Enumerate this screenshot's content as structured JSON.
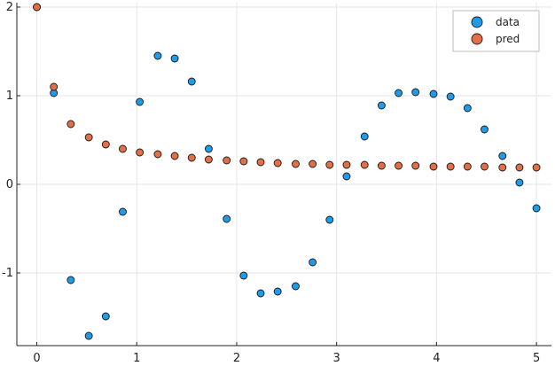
{
  "chart_data": {
    "type": "scatter",
    "xlim": [
      -0.2,
      5.15
    ],
    "ylim": [
      -1.82,
      2.05
    ],
    "xticks": [
      0,
      1,
      2,
      3,
      4,
      5
    ],
    "yticks": [
      -1,
      0,
      1,
      2
    ],
    "grid": true,
    "legend_position": "top-right",
    "series": [
      {
        "name": "data",
        "color": "#1f9bea",
        "points": [
          [
            0.0,
            2.0
          ],
          [
            0.17,
            1.03
          ],
          [
            0.34,
            -1.08
          ],
          [
            0.52,
            -1.71
          ],
          [
            0.69,
            -1.49
          ],
          [
            0.86,
            -0.31
          ],
          [
            1.03,
            0.93
          ],
          [
            1.21,
            1.45
          ],
          [
            1.38,
            1.42
          ],
          [
            1.55,
            1.16
          ],
          [
            1.72,
            0.4
          ],
          [
            1.9,
            -0.39
          ],
          [
            2.07,
            -1.03
          ],
          [
            2.24,
            -1.23
          ],
          [
            2.41,
            -1.21
          ],
          [
            2.59,
            -1.15
          ],
          [
            2.76,
            -0.88
          ],
          [
            2.93,
            -0.4
          ],
          [
            3.1,
            0.09
          ],
          [
            3.28,
            0.54
          ],
          [
            3.45,
            0.89
          ],
          [
            3.62,
            1.03
          ],
          [
            3.79,
            1.04
          ],
          [
            3.97,
            1.02
          ],
          [
            4.14,
            0.99
          ],
          [
            4.31,
            0.86
          ],
          [
            4.48,
            0.62
          ],
          [
            4.66,
            0.32
          ],
          [
            4.83,
            0.02
          ],
          [
            5.0,
            -0.27
          ]
        ]
      },
      {
        "name": "pred",
        "color": "#e26f46",
        "points": [
          [
            0.0,
            2.0
          ],
          [
            0.17,
            1.1
          ],
          [
            0.34,
            0.68
          ],
          [
            0.52,
            0.53
          ],
          [
            0.69,
            0.45
          ],
          [
            0.86,
            0.4
          ],
          [
            1.03,
            0.36
          ],
          [
            1.21,
            0.34
          ],
          [
            1.38,
            0.32
          ],
          [
            1.55,
            0.3
          ],
          [
            1.72,
            0.28
          ],
          [
            1.9,
            0.27
          ],
          [
            2.07,
            0.26
          ],
          [
            2.24,
            0.25
          ],
          [
            2.41,
            0.24
          ],
          [
            2.59,
            0.23
          ],
          [
            2.76,
            0.23
          ],
          [
            2.93,
            0.22
          ],
          [
            3.1,
            0.22
          ],
          [
            3.28,
            0.22
          ],
          [
            3.45,
            0.21
          ],
          [
            3.62,
            0.21
          ],
          [
            3.79,
            0.21
          ],
          [
            3.97,
            0.2
          ],
          [
            4.14,
            0.2
          ],
          [
            4.31,
            0.2
          ],
          [
            4.48,
            0.2
          ],
          [
            4.66,
            0.19
          ],
          [
            4.83,
            0.19
          ],
          [
            5.0,
            0.19
          ]
        ]
      }
    ]
  }
}
